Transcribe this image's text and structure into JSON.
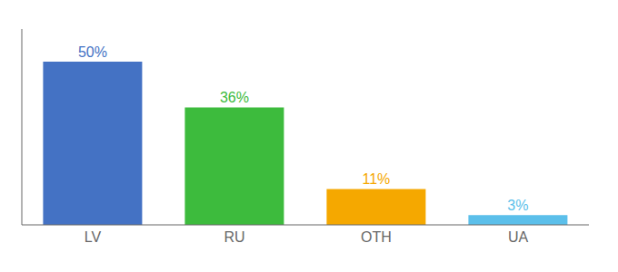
{
  "chart_data": {
    "type": "bar",
    "categories": [
      "LV",
      "RU",
      "OTH",
      "UA"
    ],
    "values": [
      50,
      36,
      11,
      3
    ],
    "value_labels": [
      "50%",
      "36%",
      "11%",
      "3%"
    ],
    "data_labels": true,
    "colors": [
      "#4472c4",
      "#3dbb3d",
      "#f5a800",
      "#5bbfea"
    ],
    "ylim": [
      0,
      60
    ],
    "tick_labels": "x",
    "grid": false
  }
}
